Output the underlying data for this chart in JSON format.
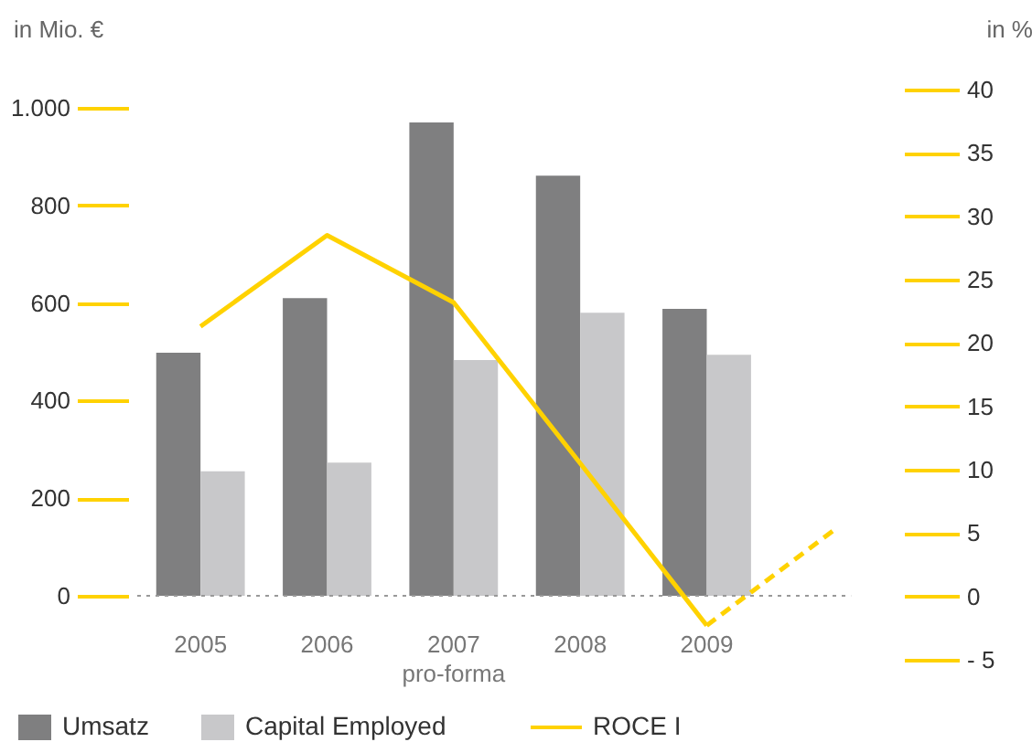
{
  "chart_data": {
    "type": "bar",
    "categories": [
      "2005",
      "2006",
      "2007",
      "2008",
      "2009",
      null
    ],
    "ylabel": "in Mio. €",
    "y2label": "in %",
    "series": [
      {
        "name": "Umsatz",
        "color": "#7f7f80",
        "values": [
          498,
          610,
          970,
          861,
          588,
          null
        ]
      },
      {
        "name": "Capital Employed",
        "color": "#c8c8ca",
        "values": [
          255,
          273,
          483,
          580,
          494,
          null
        ]
      },
      {
        "name": "ROCE I",
        "type": "line",
        "axis": "y2",
        "color": "#ffd200",
        "line_style": "solid",
        "values": [
          21.3,
          28.5,
          23.2,
          10.5,
          -2.3,
          null
        ]
      },
      {
        "type": "line",
        "axis": "y2",
        "color": "#ffd200",
        "line_style": "dashed",
        "values": [
          null,
          null,
          null,
          null,
          -2.3,
          5.2
        ]
      }
    ],
    "ylim": [
      0,
      1000
    ],
    "yticks": [
      0,
      200,
      400,
      600,
      800,
      {
        "value": 1000,
        "label": "1.000"
      }
    ],
    "y2lim": [
      -5,
      40
    ],
    "y2ticks": [
      {
        "value": -5,
        "label": "- 5"
      },
      0,
      5,
      10,
      15,
      20,
      25,
      30,
      35,
      40
    ],
    "ref_lines": [
      {
        "axis": "y",
        "value": 0,
        "color": "#999999",
        "line_style": "dotted"
      }
    ],
    "annotations": [
      "pro-forma"
    ],
    "grid": false,
    "legend": "bottom left"
  }
}
